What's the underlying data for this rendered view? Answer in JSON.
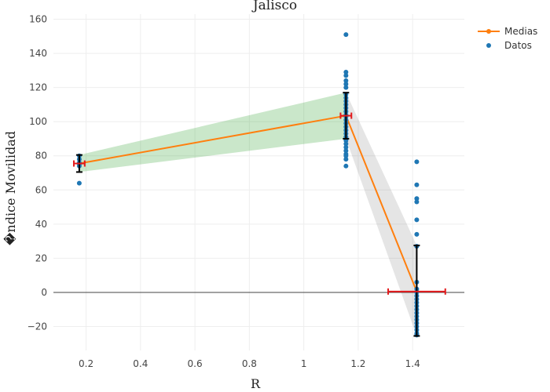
{
  "chart_data": {
    "type": "scatter",
    "title": "Jalisco",
    "xlabel": "R",
    "ylabel": "�ndice Movilidad",
    "xlim": [
      0.08,
      1.59
    ],
    "ylim": [
      -34,
      163
    ],
    "x_ticks": [
      "0.2",
      "0.4",
      "0.6",
      "0.8",
      "1",
      "1.2",
      "1.4"
    ],
    "x_tick_values": [
      0.2,
      0.4,
      0.6,
      0.8,
      1.0,
      1.2,
      1.4
    ],
    "y_ticks": [
      "−20",
      "0",
      "20",
      "40",
      "60",
      "80",
      "100",
      "120",
      "140",
      "160"
    ],
    "y_tick_values": [
      -20,
      0,
      20,
      40,
      60,
      80,
      100,
      120,
      140,
      160
    ],
    "grid": true,
    "zero_line": true,
    "legend_position": "top-right",
    "legend": [
      {
        "name": "Medias",
        "color": "#ff7f0e",
        "symbol": "line-marker"
      },
      {
        "name": "Datos",
        "color": "#1f77b4",
        "symbol": "marker"
      }
    ],
    "series": [
      {
        "name": "Medias",
        "color": "#ff7f0e",
        "x": [
          0.175,
          1.155,
          1.415
        ],
        "y": [
          75.5,
          103.5,
          0.5
        ]
      },
      {
        "name": "Datos",
        "color": "#1f77b4",
        "x": [
          0.175,
          0.175,
          0.175,
          0.175,
          0.175,
          0.175,
          1.155,
          1.155,
          1.155,
          1.155,
          1.155,
          1.155,
          1.155,
          1.155,
          1.155,
          1.155,
          1.155,
          1.155,
          1.155,
          1.155,
          1.155,
          1.155,
          1.155,
          1.155,
          1.155,
          1.155,
          1.155,
          1.155,
          1.155,
          1.155,
          1.155,
          1.155,
          1.155,
          1.155,
          1.415,
          1.415,
          1.415,
          1.415,
          1.415,
          1.415,
          1.415,
          1.415,
          1.415,
          1.415,
          1.415,
          1.415,
          1.415,
          1.415,
          1.415,
          1.415,
          1.415,
          1.415,
          1.415,
          1.415,
          1.415,
          1.415,
          1.415
        ],
        "y": [
          80,
          78,
          76,
          75,
          74,
          64,
          151,
          129,
          127,
          124,
          122,
          120,
          116,
          114,
          112,
          110,
          108,
          106,
          104,
          103,
          101,
          99,
          97,
          95,
          93,
          91,
          89,
          87,
          85,
          83,
          81,
          80,
          78,
          74,
          76.5,
          63,
          55,
          53,
          42.5,
          34,
          27,
          6,
          2,
          0,
          -2,
          -4,
          -6,
          -8,
          -10,
          -12,
          -14,
          -16,
          -18,
          -20,
          -22,
          -24,
          -25
        ]
      }
    ],
    "error_bars_y": [
      {
        "x": 0.175,
        "low": 70.5,
        "high": 80.5,
        "color": "#000000"
      },
      {
        "x": 1.155,
        "low": 90,
        "high": 117,
        "color": "#000000"
      },
      {
        "x": 1.415,
        "low": -25.5,
        "high": 27.5,
        "color": "#000000"
      }
    ],
    "error_bars_x": [
      {
        "y": 75.5,
        "low": 0.155,
        "high": 0.195,
        "color": "#e31a1c"
      },
      {
        "y": 103.5,
        "low": 1.135,
        "high": 1.175,
        "color": "#e31a1c"
      },
      {
        "y": 0.5,
        "low": 1.31,
        "high": 1.52,
        "color": "#e31a1c"
      }
    ],
    "bands": [
      {
        "color": "#2ca02c",
        "opacity": 0.25,
        "x": [
          0.175,
          1.155
        ],
        "lower": [
          70.5,
          90
        ],
        "upper": [
          80.5,
          117
        ]
      },
      {
        "color": "#7f7f7f",
        "opacity": 0.2,
        "x": [
          1.155,
          1.415
        ],
        "lower": [
          90,
          -25.5
        ],
        "upper": [
          117,
          27.5
        ]
      }
    ]
  }
}
